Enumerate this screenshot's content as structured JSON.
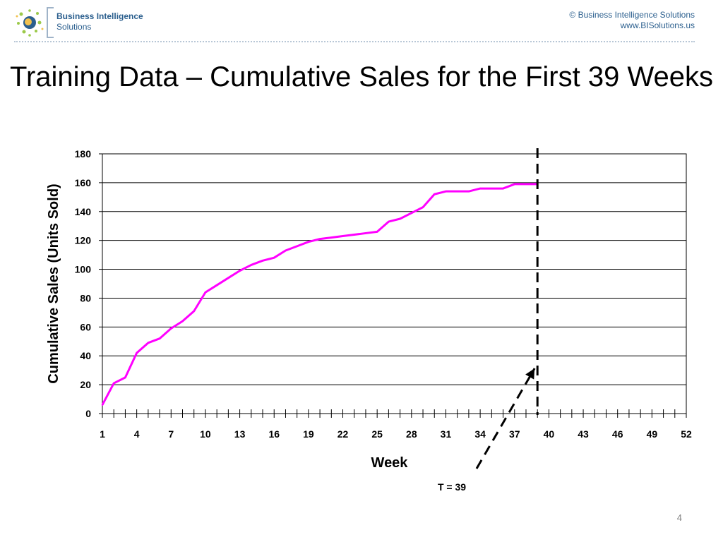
{
  "header": {
    "logo_name": "Business Intelligence",
    "logo_sub": "Solutions",
    "copyright": "© Business Intelligence Solutions",
    "website": "www.BISolutions.us"
  },
  "slide": {
    "title": "Training Data – Cumulative Sales for the First 39 Weeks",
    "page_number": "4"
  },
  "chart_data": {
    "type": "line",
    "title": "",
    "xlabel": "Week",
    "ylabel": "Cumulative Sales (Units Sold)",
    "xlim": [
      1,
      52
    ],
    "ylim": [
      0,
      180
    ],
    "y_ticks": [
      0,
      20,
      40,
      60,
      80,
      100,
      120,
      140,
      160,
      180
    ],
    "x_tick_labels": [
      1,
      4,
      7,
      10,
      13,
      16,
      19,
      22,
      25,
      28,
      31,
      34,
      37,
      40,
      43,
      46,
      49,
      52
    ],
    "grid": "horizontal",
    "series_color": "#ff00ff",
    "series": [
      {
        "x": [
          1,
          2,
          3,
          4,
          5,
          6,
          7,
          8,
          9,
          10,
          11,
          12,
          13,
          14,
          15,
          16,
          17,
          18,
          19,
          20,
          21,
          22,
          23,
          24,
          25,
          26,
          27,
          28,
          29,
          30,
          31,
          32,
          33,
          34,
          35,
          36,
          37,
          38,
          39
        ],
        "values": [
          6,
          21,
          25,
          42,
          49,
          52,
          59,
          64,
          71,
          84,
          89,
          94,
          99,
          103,
          106,
          108,
          113,
          116,
          119,
          121,
          122,
          123,
          124,
          125,
          126,
          133,
          135,
          139,
          143,
          152,
          154,
          154,
          154,
          156,
          156,
          156,
          159,
          159,
          159
        ]
      }
    ],
    "cutoff_line": {
      "x": 39
    },
    "annotation": {
      "text": "T = 39",
      "points_to_x": 39
    }
  }
}
